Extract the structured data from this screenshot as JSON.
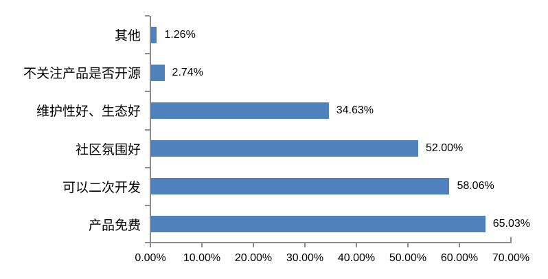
{
  "chart_data": {
    "type": "bar",
    "orientation": "horizontal",
    "title": "",
    "xlabel": "",
    "ylabel": "",
    "categories": [
      "其他",
      "不关注产品是否开源",
      "维护性好、生态好",
      "社区氛围好",
      "可以二次开发",
      "产品免费"
    ],
    "values": [
      1.26,
      2.74,
      34.63,
      52.0,
      58.06,
      65.03
    ],
    "value_labels": [
      "1.26%",
      "2.74%",
      "34.63%",
      "52.00%",
      "58.06%",
      "65.03%"
    ],
    "x_tick_labels": [
      "0.00%",
      "10.00%",
      "20.00%",
      "30.00%",
      "40.00%",
      "50.00%",
      "60.00%",
      "70.00%"
    ],
    "xlim": [
      0,
      70
    ],
    "x_tick_step": 10,
    "grid": false,
    "legend_position": "none",
    "colors": {
      "bar": "#4F81BD",
      "axis": "#8C8C8C",
      "text": "#000000",
      "background": "#FFFFFF"
    }
  }
}
